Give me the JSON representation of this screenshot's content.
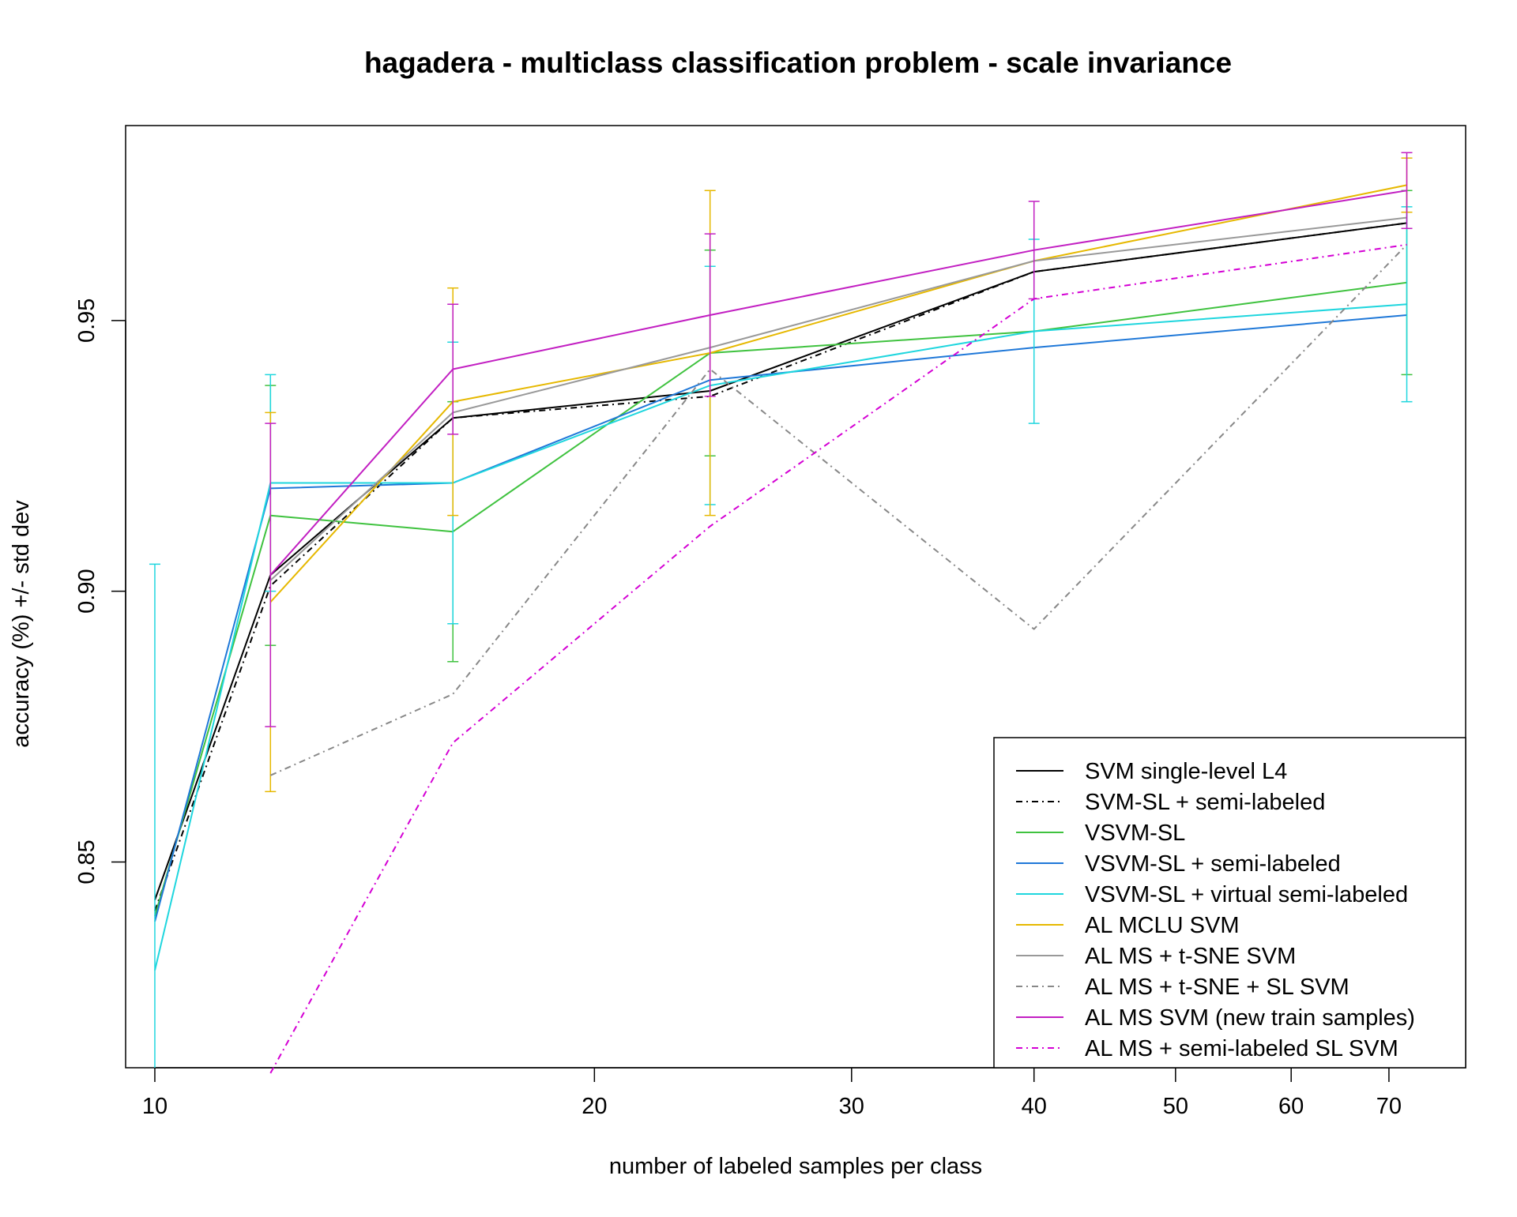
{
  "chart_data": {
    "type": "line",
    "title": "hagadera - multiclass classification problem - scale invariance",
    "xlabel": "number of labeled samples per class",
    "ylabel": "accuracy (%) +/- std dev",
    "x_scale": "log",
    "xlim": [
      9.55,
      79
    ],
    "ylim": [
      0.812,
      0.986
    ],
    "x_ticks": [
      10,
      20,
      30,
      40,
      50,
      60,
      70
    ],
    "x_tick_labels": [
      "10",
      "20",
      "30",
      "40",
      "50",
      "60",
      "70"
    ],
    "y_ticks": [
      0.85,
      0.9,
      0.95
    ],
    "y_tick_labels": [
      "0.85",
      "0.90",
      "0.95"
    ],
    "grid": false,
    "legend_position": "bottom-right",
    "series": [
      {
        "name": "SVM single-level L4",
        "color": "#000000",
        "dash": "solid",
        "x": [
          10,
          12,
          16,
          24,
          40,
          72
        ],
        "y": [
          0.843,
          0.903,
          0.932,
          0.937,
          0.959,
          0.968
        ],
        "err": [
          0,
          0,
          0,
          0,
          0,
          0
        ]
      },
      {
        "name": "SVM-SL + semi-labeled",
        "color": "#000000",
        "dash": "dotdash",
        "x": [
          10,
          12,
          16,
          24,
          40,
          72
        ],
        "y": [
          0.841,
          0.901,
          0.932,
          0.936,
          0.959,
          0.968
        ],
        "err": [
          0,
          0,
          0,
          0,
          0,
          0
        ]
      },
      {
        "name": "VSVM-SL",
        "color": "#3fc23f",
        "dash": "solid",
        "x": [
          10,
          12,
          16,
          24,
          40,
          72
        ],
        "y": [
          0.84,
          0.914,
          0.911,
          0.944,
          0.948,
          0.957
        ],
        "err": [
          0,
          0.024,
          0.024,
          0.019,
          0,
          0.017
        ]
      },
      {
        "name": "VSVM-SL + semi-labeled",
        "color": "#1f78d8",
        "dash": "solid",
        "x": [
          10,
          12,
          16,
          24,
          40,
          72
        ],
        "y": [
          0.839,
          0.919,
          0.92,
          0.939,
          0.945,
          0.951
        ],
        "err": [
          0,
          0,
          0,
          0,
          0,
          0
        ]
      },
      {
        "name": "VSVM-SL + virtual semi-labeled",
        "color": "#1fd6de",
        "dash": "solid",
        "x": [
          10,
          12,
          16,
          24,
          40,
          72
        ],
        "y": [
          0.83,
          0.92,
          0.92,
          0.938,
          0.948,
          0.953
        ],
        "err": [
          0.075,
          0.02,
          0.026,
          0.022,
          0.017,
          0.018
        ]
      },
      {
        "name": "AL MCLU SVM",
        "color": "#e6b800",
        "dash": "solid",
        "x": [
          12,
          16,
          24,
          40,
          72
        ],
        "y": [
          0.898,
          0.935,
          0.944,
          0.961,
          0.975
        ],
        "err": [
          0.035,
          0.021,
          0.03,
          0,
          0.005
        ]
      },
      {
        "name": "AL MS + t-SNE SVM",
        "color": "#999999",
        "dash": "solid",
        "x": [
          12,
          16,
          24,
          40,
          72
        ],
        "y": [
          0.902,
          0.933,
          0.945,
          0.961,
          0.969
        ],
        "err": [
          0,
          0,
          0,
          0,
          0
        ]
      },
      {
        "name": "AL MS + t-SNE + SL SVM",
        "color": "#888888",
        "dash": "dotdash",
        "x": [
          12,
          16,
          24,
          40,
          72
        ],
        "y": [
          0.866,
          0.881,
          0.941,
          0.893,
          0.964
        ],
        "err": [
          0,
          0,
          0,
          0,
          0
        ]
      },
      {
        "name": "AL MS SVM (new train samples)",
        "color": "#c21fc2",
        "dash": "solid",
        "x": [
          12,
          16,
          24,
          40,
          72
        ],
        "y": [
          0.903,
          0.941,
          0.951,
          0.963,
          0.974
        ],
        "err": [
          0.028,
          0.012,
          0.015,
          0.009,
          0.007
        ]
      },
      {
        "name": "AL MS + semi-labeled SL SVM",
        "color": "#d400d4",
        "dash": "dotdash",
        "x": [
          12,
          16,
          24,
          40,
          72
        ],
        "y": [
          0.811,
          0.872,
          0.912,
          0.954,
          0.964
        ],
        "err": [
          0,
          0,
          0,
          0,
          0
        ]
      }
    ]
  }
}
